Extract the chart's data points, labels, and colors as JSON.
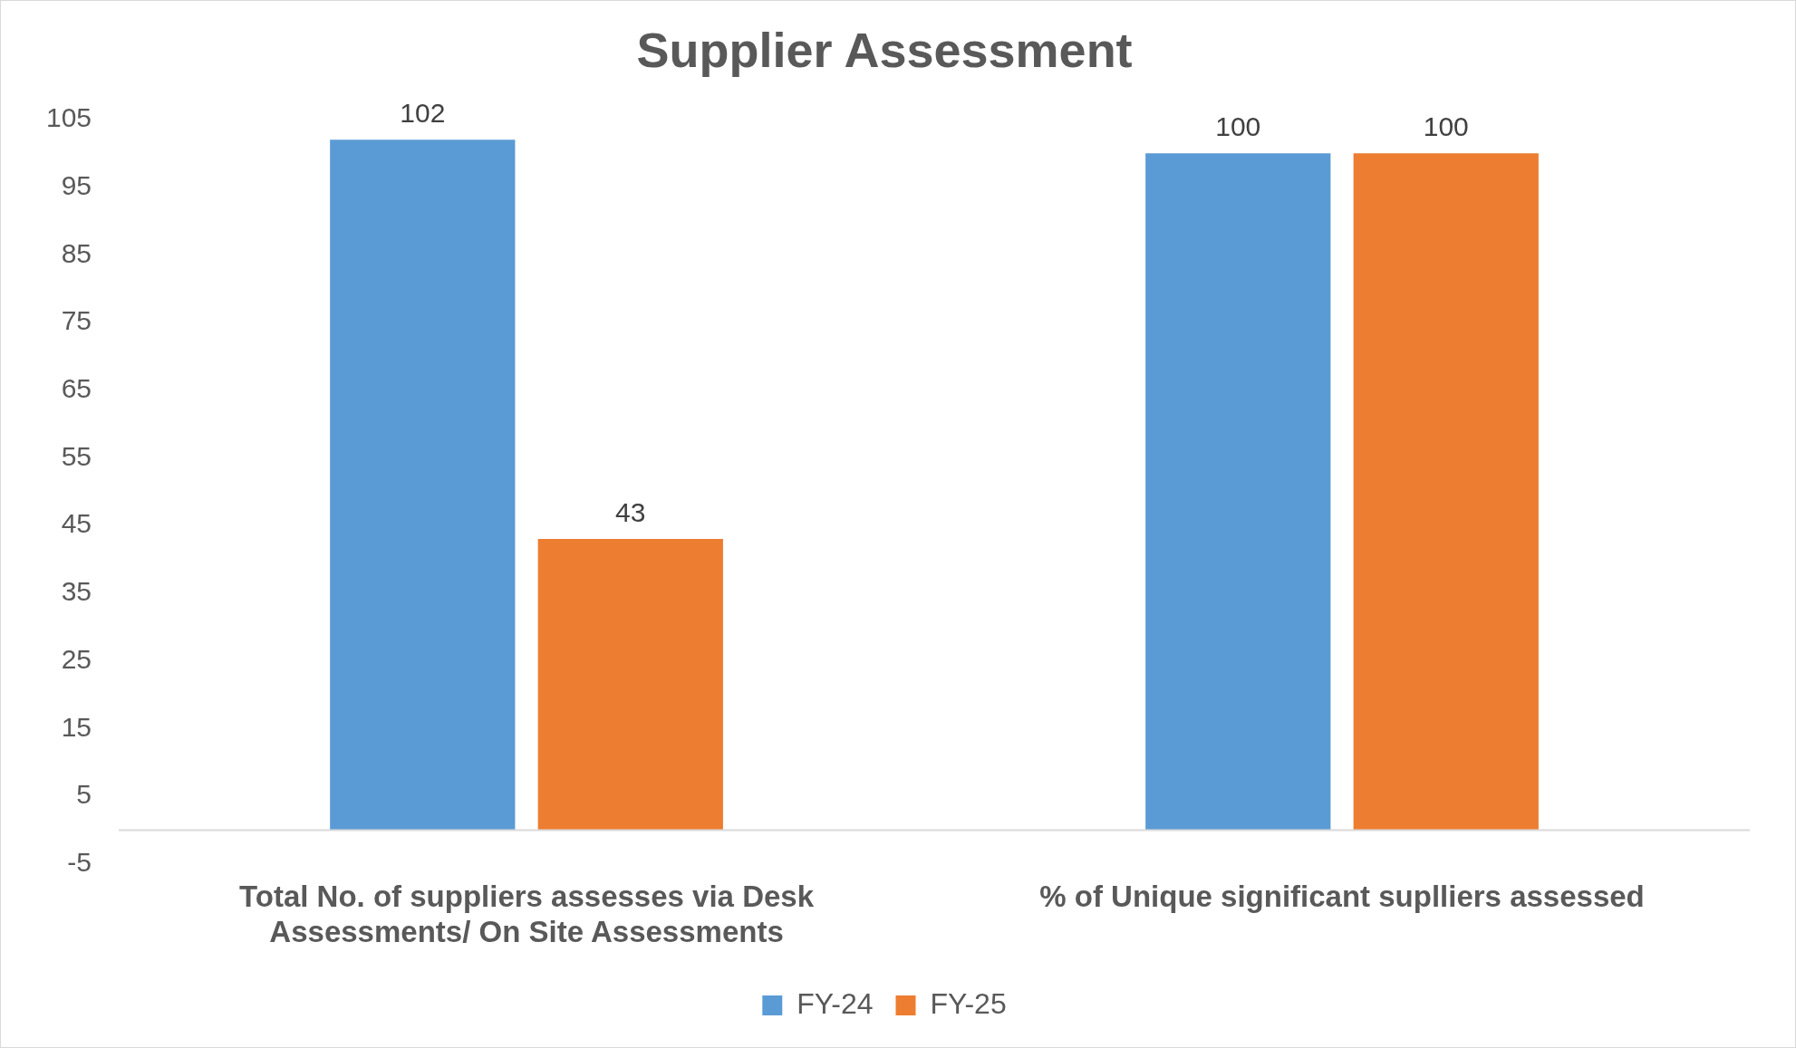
{
  "chart_data": {
    "type": "bar",
    "title": "Supplier Assessment",
    "categories": [
      "Total No. of suppliers assesses via Desk Assessments/ On Site Assessments",
      "% of Unique significant suplliers assessed"
    ],
    "series": [
      {
        "name": "FY-24",
        "color": "#5b9bd5",
        "values": [
          102,
          100
        ]
      },
      {
        "name": "FY-25",
        "color": "#ed7d31",
        "values": [
          43,
          100
        ]
      }
    ],
    "ylim": [
      -5,
      105
    ],
    "yticks": [
      -5,
      5,
      15,
      25,
      35,
      45,
      55,
      65,
      75,
      85,
      95,
      105
    ],
    "grid": false,
    "legend": "bottom",
    "data_labels": true
  }
}
